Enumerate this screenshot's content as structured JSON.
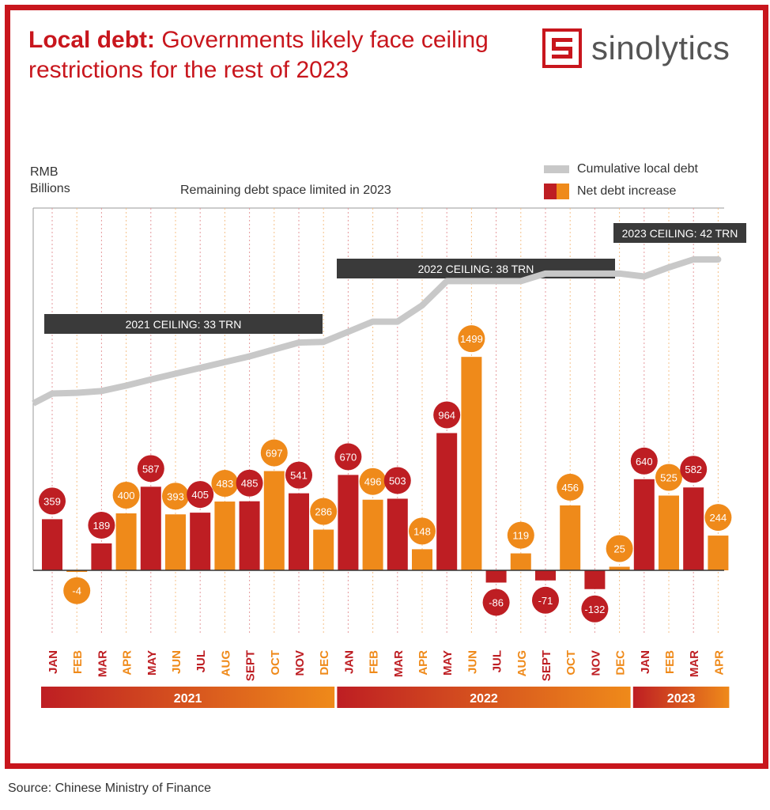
{
  "header": {
    "title_bold": "Local debt:",
    "title_rest": " Governments likely face ceiling restrictions for the rest of 2023",
    "logo_text": "sinolytics"
  },
  "legend": {
    "line_label": "Cumulative local debt",
    "bar_label": "Net debt increase"
  },
  "footer": {
    "source": "Source: Chinese Ministry of Finance"
  },
  "colors": {
    "red": "#be1e23",
    "orange": "#ef8a1a",
    "line": "#c8c8c8",
    "frame": "#c8161d",
    "ceiling": "#3a3a3a"
  },
  "chart_data": {
    "type": "bar",
    "title": "Remaining debt space limited in 2023",
    "ylabel": "RMB Billions",
    "categories": [
      "JAN",
      "FEB",
      "MAR",
      "APR",
      "MAY",
      "JUN",
      "JUL",
      "AUG",
      "SEPT",
      "OCT",
      "NOV",
      "DEC",
      "JAN",
      "FEB",
      "MAR",
      "APR",
      "MAY",
      "JUN",
      "JUL",
      "AUG",
      "SEPT",
      "OCT",
      "NOV",
      "DEC",
      "JAN",
      "FEB",
      "MAR",
      "APR"
    ],
    "series": [
      {
        "name": "Net debt increase",
        "values": [
          359,
          -4,
          189,
          400,
          587,
          393,
          405,
          483,
          485,
          697,
          541,
          286,
          670,
          496,
          503,
          148,
          964,
          1499,
          -86,
          119,
          -71,
          456,
          -132,
          25,
          640,
          525,
          582,
          244
        ]
      },
      {
        "name": "Cumulative local debt",
        "type": "line",
        "values": [
          1,
          3,
          8,
          23,
          40,
          56,
          72,
          88,
          104,
          123,
          142,
          144,
          172,
          200,
          200,
          245,
          312,
          312,
          312,
          312,
          333,
          333,
          333,
          333,
          325,
          350,
          372,
          372
        ]
      }
    ],
    "years": [
      {
        "label": "2021",
        "start": 0,
        "end": 11
      },
      {
        "label": "2022",
        "start": 12,
        "end": 23
      },
      {
        "label": "2023",
        "start": 24,
        "end": 27
      }
    ],
    "ceilings": [
      {
        "label": "2021 CEILING: 33 TRN",
        "start": 0,
        "end": 11,
        "level": 33
      },
      {
        "label": "2022 CEILING: 38 TRN",
        "start": 12,
        "end": 23,
        "level": 38
      },
      {
        "label": "2023 CEILING: 42 TRN",
        "start": 24,
        "end": 27,
        "level": 42
      }
    ],
    "grid": true,
    "legend_position": "top-right"
  }
}
